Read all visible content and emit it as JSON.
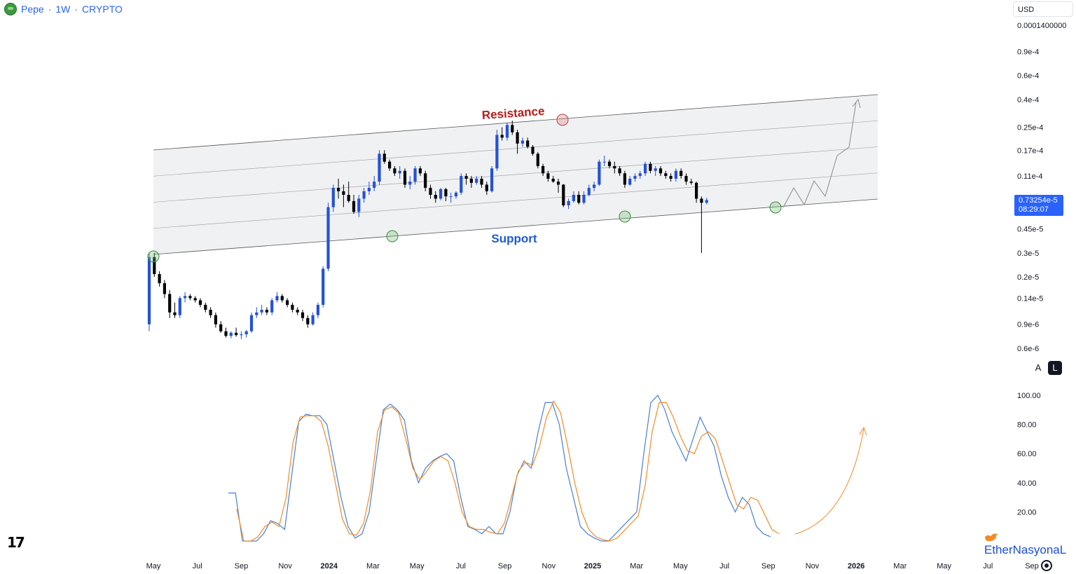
{
  "header": {
    "symbol": "Pepe",
    "interval": "1W",
    "exchange": "CRYPTO",
    "separator": "·",
    "logo_icon": "pepe-coin-icon"
  },
  "price_scale": {
    "currency": "USD",
    "labels": [
      "0.0001400000",
      "0.9e-4",
      "0.6e-4",
      "0.4e-4",
      "0.25e-4",
      "0.17e-4",
      "0.11e-4",
      "0.45e-5",
      "0.3e-5",
      "0.2e-5",
      "0.14e-5",
      "0.9e-6",
      "0.6e-6"
    ],
    "current_price": "0.73254e-5",
    "countdown": "08:29:07",
    "current_price_color": "#2962ff",
    "auto_button": "A",
    "log_button": "L"
  },
  "oscillator_scale": {
    "labels": [
      "100.00",
      "80.00",
      "60.00",
      "40.00",
      "20.00"
    ]
  },
  "time_axis": {
    "labels": [
      "May",
      "Jul",
      "Sep",
      "Nov",
      "2024",
      "Mar",
      "May",
      "Jul",
      "Sep",
      "Nov",
      "2025",
      "Mar",
      "May",
      "Jul",
      "Sep",
      "Nov",
      "2026",
      "Mar",
      "May",
      "Jul",
      "Sep"
    ]
  },
  "annotations": {
    "resistance_label": "Resistance",
    "support_label": "Support",
    "resistance_color": "#b71c1c",
    "support_color": "#1e5bd6",
    "channel_fill": "#f0f1f3"
  },
  "colors": {
    "bull_candle": "#2451d6",
    "bear_candle": "#000000",
    "stoch_k": "#4a7fd6",
    "stoch_d": "#f28c28",
    "projection": "#8a8a8a"
  },
  "branding": {
    "tradingview_logo": "17",
    "watermark": "EtherNasyonaL",
    "bird_icon": "twitter-bird-icon",
    "settings_icon": "gear-icon"
  },
  "chart_data": [
    {
      "type": "candlestick",
      "title": "Pepe · 1W · CRYPTO",
      "y_scale": "log",
      "ylim": [
        4.5e-07,
        0.00014
      ],
      "x_range": [
        "2023-04",
        "2026-09"
      ],
      "series": [
        {
          "name": "PEPE weekly",
          "values": [
            [
              9e-07,
              3e-06,
              8e-07,
              2.8e-06
            ],
            [
              2.8e-06,
              3e-06,
              2e-06,
              2.1e-06
            ],
            [
              2.1e-06,
              2.2e-06,
              1.7e-06,
              1.8e-06
            ],
            [
              1.8e-06,
              1.9e-06,
              1.4e-06,
              1.5e-06
            ],
            [
              1.5e-06,
              1.6e-06,
              1e-06,
              1.1e-06
            ],
            [
              1.1e-06,
              1.3e-06,
              1e-06,
              1.05e-06
            ],
            [
              1.05e-06,
              1.45e-06,
              1e-06,
              1.4e-06
            ],
            [
              1.4e-06,
              1.55e-06,
              1.3e-06,
              1.45e-06
            ],
            [
              1.45e-06,
              1.5e-06,
              1.35e-06,
              1.4e-06
            ],
            [
              1.4e-06,
              1.45e-06,
              1.3e-06,
              1.35e-06
            ],
            [
              1.35e-06,
              1.4e-06,
              1.2e-06,
              1.25e-06
            ],
            [
              1.25e-06,
              1.3e-06,
              1.1e-06,
              1.15e-06
            ],
            [
              1.15e-06,
              1.2e-06,
              1e-06,
              1.05e-06
            ],
            [
              1.05e-06,
              1.1e-06,
              8.5e-07,
              9e-07
            ],
            [
              9e-07,
              9.5e-07,
              7.8e-07,
              8e-07
            ],
            [
              8e-07,
              8.5e-07,
              7.2e-07,
              7.4e-07
            ],
            [
              7.4e-07,
              8e-07,
              7.1e-07,
              7.8e-07
            ],
            [
              7.8e-07,
              8.5e-07,
              7.3e-07,
              7.5e-07
            ],
            [
              7.5e-07,
              8e-07,
              7e-07,
              7.6e-07
            ],
            [
              7.6e-07,
              8.2e-07,
              7.2e-07,
              8e-07
            ],
            [
              8e-07,
              1.1e-06,
              7.8e-07,
              1.05e-06
            ],
            [
              1.05e-06,
              1.2e-06,
              1e-06,
              1.1e-06
            ],
            [
              1.1e-06,
              1.25e-06,
              1.05e-06,
              1.15e-06
            ],
            [
              1.15e-06,
              1.2e-06,
              1.05e-06,
              1.1e-06
            ],
            [
              1.1e-06,
              1.4e-06,
              1.05e-06,
              1.35e-06
            ],
            [
              1.35e-06,
              1.55e-06,
              1.3e-06,
              1.45e-06
            ],
            [
              1.45e-06,
              1.5e-06,
              1.3e-06,
              1.35e-06
            ],
            [
              1.35e-06,
              1.4e-06,
              1.2e-06,
              1.25e-06
            ],
            [
              1.25e-06,
              1.3e-06,
              1.1e-06,
              1.15e-06
            ],
            [
              1.15e-06,
              1.2e-06,
              1.05e-06,
              1.1e-06
            ],
            [
              1.1e-06,
              1.15e-06,
              9.5e-07,
              1e-06
            ],
            [
              1e-06,
              1.05e-06,
              8.5e-07,
              9e-07
            ],
            [
              9e-07,
              1.1e-06,
              8.8e-07,
              1.05e-06
            ],
            [
              1.05e-06,
              1.3e-06,
              1e-06,
              1.25e-06
            ],
            [
              1.25e-06,
              2.4e-06,
              1.2e-06,
              2.3e-06
            ],
            [
              2.3e-06,
              7e-06,
              2.2e-06,
              6.5e-06
            ],
            [
              6.5e-06,
              9.5e-06,
              6e-06,
              9e-06
            ],
            [
              9e-06,
              1.05e-05,
              7.5e-06,
              8.5e-06
            ],
            [
              8.5e-06,
              9.5e-06,
              6.5e-06,
              8e-06
            ],
            [
              8e-06,
              1e-05,
              7e-06,
              7.2e-06
            ],
            [
              7.2e-06,
              8e-06,
              5.8e-06,
              6e-06
            ],
            [
              6e-06,
              8e-06,
              5.5e-06,
              7.5e-06
            ],
            [
              7.5e-06,
              9e-06,
              7e-06,
              8.5e-06
            ],
            [
              8.5e-06,
              1e-05,
              8e-06,
              9e-06
            ],
            [
              9e-06,
              1.1e-05,
              8.5e-06,
              1e-05
            ],
            [
              1e-05,
              1.7e-05,
              9.5e-06,
              1.6e-05
            ],
            [
              1.6e-05,
              1.7e-05,
              1.35e-05,
              1.4e-05
            ],
            [
              1.4e-05,
              1.45e-05,
              1.2e-05,
              1.25e-05
            ],
            [
              1.25e-05,
              1.3e-05,
              1.1e-05,
              1.15e-05
            ],
            [
              1.15e-05,
              1.3e-05,
              1.05e-05,
              1.2e-05
            ],
            [
              1.2e-05,
              1.25e-05,
              9e-06,
              9.5e-06
            ],
            [
              9.5e-06,
              1.1e-05,
              8.8e-06,
              1e-05
            ],
            [
              1e-05,
              1.3e-05,
              9.5e-06,
              1.25e-05
            ],
            [
              1.25e-05,
              1.3e-05,
              1.1e-05,
              1.15e-05
            ],
            [
              1.15e-05,
              1.2e-05,
              8.5e-06,
              9e-06
            ],
            [
              9e-06,
              9.5e-06,
              7.5e-06,
              8e-06
            ],
            [
              8e-06,
              8.5e-06,
              7e-06,
              7.5e-06
            ],
            [
              7.5e-06,
              9e-06,
              7.3e-06,
              8.8e-06
            ],
            [
              8.8e-06,
              9e-06,
              7.2e-06,
              7.8e-06
            ],
            [
              7.8e-06,
              8.3e-06,
              7e-06,
              7.8e-06
            ],
            [
              7.8e-06,
              8.5e-06,
              7.5e-06,
              8.3e-06
            ],
            [
              8.3e-06,
              1.15e-05,
              8e-06,
              1.1e-05
            ],
            [
              1.1e-05,
              1.15e-05,
              9.5e-06,
              1.05e-05
            ],
            [
              1.05e-05,
              1.1e-05,
              9e-06,
              9.8e-06
            ],
            [
              9.8e-06,
              1.1e-05,
              9.5e-06,
              1.05e-05
            ],
            [
              1.05e-05,
              1.1e-05,
              9e-06,
              9.5e-06
            ],
            [
              9.5e-06,
              1e-05,
              8e-06,
              8.5e-06
            ],
            [
              8.5e-06,
              1.3e-05,
              8.3e-06,
              1.25e-05
            ],
            [
              1.25e-05,
              2.4e-05,
              1.2e-05,
              2.2e-05
            ],
            [
              2.2e-05,
              2.5e-05,
              2e-05,
              2.1e-05
            ],
            [
              2.1e-05,
              2.7e-05,
              2e-05,
              2.6e-05
            ],
            [
              2.6e-05,
              2.8e-05,
              2.2e-05,
              2.3e-05
            ],
            [
              2.3e-05,
              2.4e-05,
              1.6e-05,
              1.9e-05
            ],
            [
              1.9e-05,
              2.1e-05,
              1.8e-05,
              2e-05
            ],
            [
              2e-05,
              2.1e-05,
              1.75e-05,
              1.8e-05
            ],
            [
              1.8e-05,
              1.85e-05,
              1.55e-05,
              1.6e-05
            ],
            [
              1.6e-05,
              1.65e-05,
              1.25e-05,
              1.3e-05
            ],
            [
              1.3e-05,
              1.35e-05,
              1.1e-05,
              1.15e-05
            ],
            [
              1.15e-05,
              1.2e-05,
              1e-05,
              1.05e-05
            ],
            [
              1.05e-05,
              1.1e-05,
              9.8e-06,
              1e-05
            ],
            [
              1e-05,
              1.05e-05,
              8.3e-06,
              9.5e-06
            ],
            [
              9.5e-06,
              9.6e-06,
              6.5e-06,
              6.7e-06
            ],
            [
              6.7e-06,
              7.5e-06,
              6.3e-06,
              7.2e-06
            ],
            [
              7.2e-06,
              8.5e-06,
              7e-06,
              8e-06
            ],
            [
              8e-06,
              8.5e-06,
              6.8e-06,
              7e-06
            ],
            [
              7e-06,
              8.5e-06,
              6.8e-06,
              8e-06
            ],
            [
              8e-06,
              9.5e-06,
              7.8e-06,
              9e-06
            ],
            [
              9e-06,
              1e-05,
              8.5e-06,
              9.5e-06
            ],
            [
              9.5e-06,
              1.45e-05,
              9.3e-06,
              1.4e-05
            ],
            [
              1.4e-05,
              1.55e-05,
              1.3e-05,
              1.4e-05
            ],
            [
              1.4e-05,
              1.45e-05,
              1.25e-05,
              1.3e-05
            ],
            [
              1.3e-05,
              1.4e-05,
              1.15e-05,
              1.25e-05
            ],
            [
              1.25e-05,
              1.3e-05,
              1.1e-05,
              1.15e-05
            ],
            [
              1.15e-05,
              1.2e-05,
              9e-06,
              9.5e-06
            ],
            [
              9.5e-06,
              1.1e-05,
              9.3e-06,
              1.05e-05
            ],
            [
              1.05e-05,
              1.15e-05,
              1e-05,
              1.1e-05
            ],
            [
              1.1e-05,
              1.2e-05,
              1.05e-05,
              1.15e-05
            ],
            [
              1.15e-05,
              1.4e-05,
              1.1e-05,
              1.35e-05
            ],
            [
              1.35e-05,
              1.4e-05,
              1.15e-05,
              1.2e-05
            ],
            [
              1.2e-05,
              1.3e-05,
              1.1e-05,
              1.25e-05
            ],
            [
              1.25e-05,
              1.3e-05,
              1.1e-05,
              1.15e-05
            ],
            [
              1.15e-05,
              1.2e-05,
              1.05e-05,
              1.1e-05
            ],
            [
              1.1e-05,
              1.15e-05,
              1e-05,
              1.05e-05
            ],
            [
              1.05e-05,
              1.25e-05,
              1e-05,
              1.2e-05
            ],
            [
              1.2e-05,
              1.25e-05,
              1.05e-05,
              1.1e-05
            ],
            [
              1.1e-05,
              1.15e-05,
              9.5e-06,
              1e-05
            ],
            [
              1e-05,
              1.05e-05,
              9.5e-06,
              9.8e-06
            ],
            [
              9.8e-06,
              1e-05,
              7e-06,
              7.5e-06
            ],
            [
              7.5e-06,
              7.8e-06,
              3e-06,
              7e-06
            ],
            [
              7e-06,
              7.6e-06,
              6.8e-06,
              7.3254e-06
            ]
          ]
        }
      ]
    },
    {
      "type": "line",
      "title": "",
      "ylim": [
        0,
        100
      ],
      "y_ticks": [
        100,
        80,
        60,
        40,
        20
      ],
      "series": [
        {
          "name": "",
          "color": "#4a7fd6",
          "values": [
            33,
            33,
            0,
            0,
            0,
            5,
            14,
            12,
            8,
            45,
            82,
            87,
            86,
            86,
            80,
            55,
            30,
            10,
            2,
            5,
            20,
            55,
            90,
            94,
            90,
            83,
            55,
            40,
            50,
            55,
            58,
            60,
            55,
            30,
            10,
            8,
            5,
            10,
            5,
            5,
            20,
            45,
            55,
            50,
            75,
            95,
            95,
            80,
            50,
            30,
            10,
            5,
            2,
            0,
            0,
            5,
            10,
            15,
            20,
            60,
            95,
            100,
            90,
            75,
            65,
            55,
            70,
            85,
            75,
            65,
            45,
            30,
            20,
            30,
            25,
            10,
            5,
            3
          ]
        },
        {
          "name": "",
          "color": "#f28c28",
          "values": [
            22,
            0,
            0,
            3,
            10,
            13,
            10,
            30,
            68,
            85,
            86,
            86,
            82,
            65,
            40,
            15,
            5,
            4,
            12,
            35,
            75,
            90,
            92,
            88,
            70,
            50,
            42,
            48,
            55,
            58,
            55,
            40,
            20,
            10,
            8,
            8,
            6,
            5,
            12,
            30,
            48,
            54,
            52,
            65,
            85,
            96,
            88,
            65,
            40,
            20,
            8,
            3,
            1,
            0,
            2,
            7,
            12,
            17,
            38,
            75,
            95,
            95,
            85,
            72,
            62,
            60,
            72,
            75,
            70,
            55,
            40,
            25,
            22,
            30,
            28,
            18,
            8,
            5
          ]
        }
      ]
    }
  ]
}
